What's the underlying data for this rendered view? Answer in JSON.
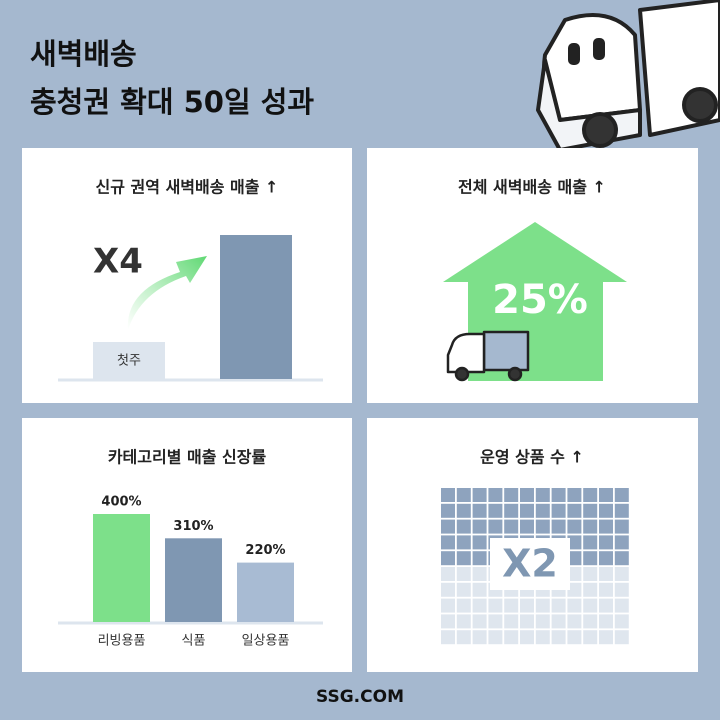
{
  "header": {
    "title": [
      "새벽배송",
      "충청권 확대 50일 성과"
    ]
  },
  "panels": [
    {
      "title": "신규 권역 새벽배송 매출 ↑",
      "multiplier": "X4",
      "bar_label": "첫주"
    },
    {
      "title": "전체 새벽배송 매출 ↑",
      "growth": "25%"
    },
    {
      "title": "카테고리별 매출 신장률"
    },
    {
      "title": "운영 상품 수 ↑",
      "multiplier": "X2"
    }
  ],
  "chart_data": {
    "type": "bar",
    "categories": [
      "리빙용품",
      "식품",
      "일상용품"
    ],
    "values": [
      400,
      310,
      220
    ],
    "value_labels": [
      "400%",
      "310%",
      "220%"
    ],
    "colors": [
      "#7de08a",
      "#7f97b2",
      "#a8bbd3"
    ],
    "ylim": [
      0,
      400
    ]
  },
  "footer": "SSG.COM"
}
